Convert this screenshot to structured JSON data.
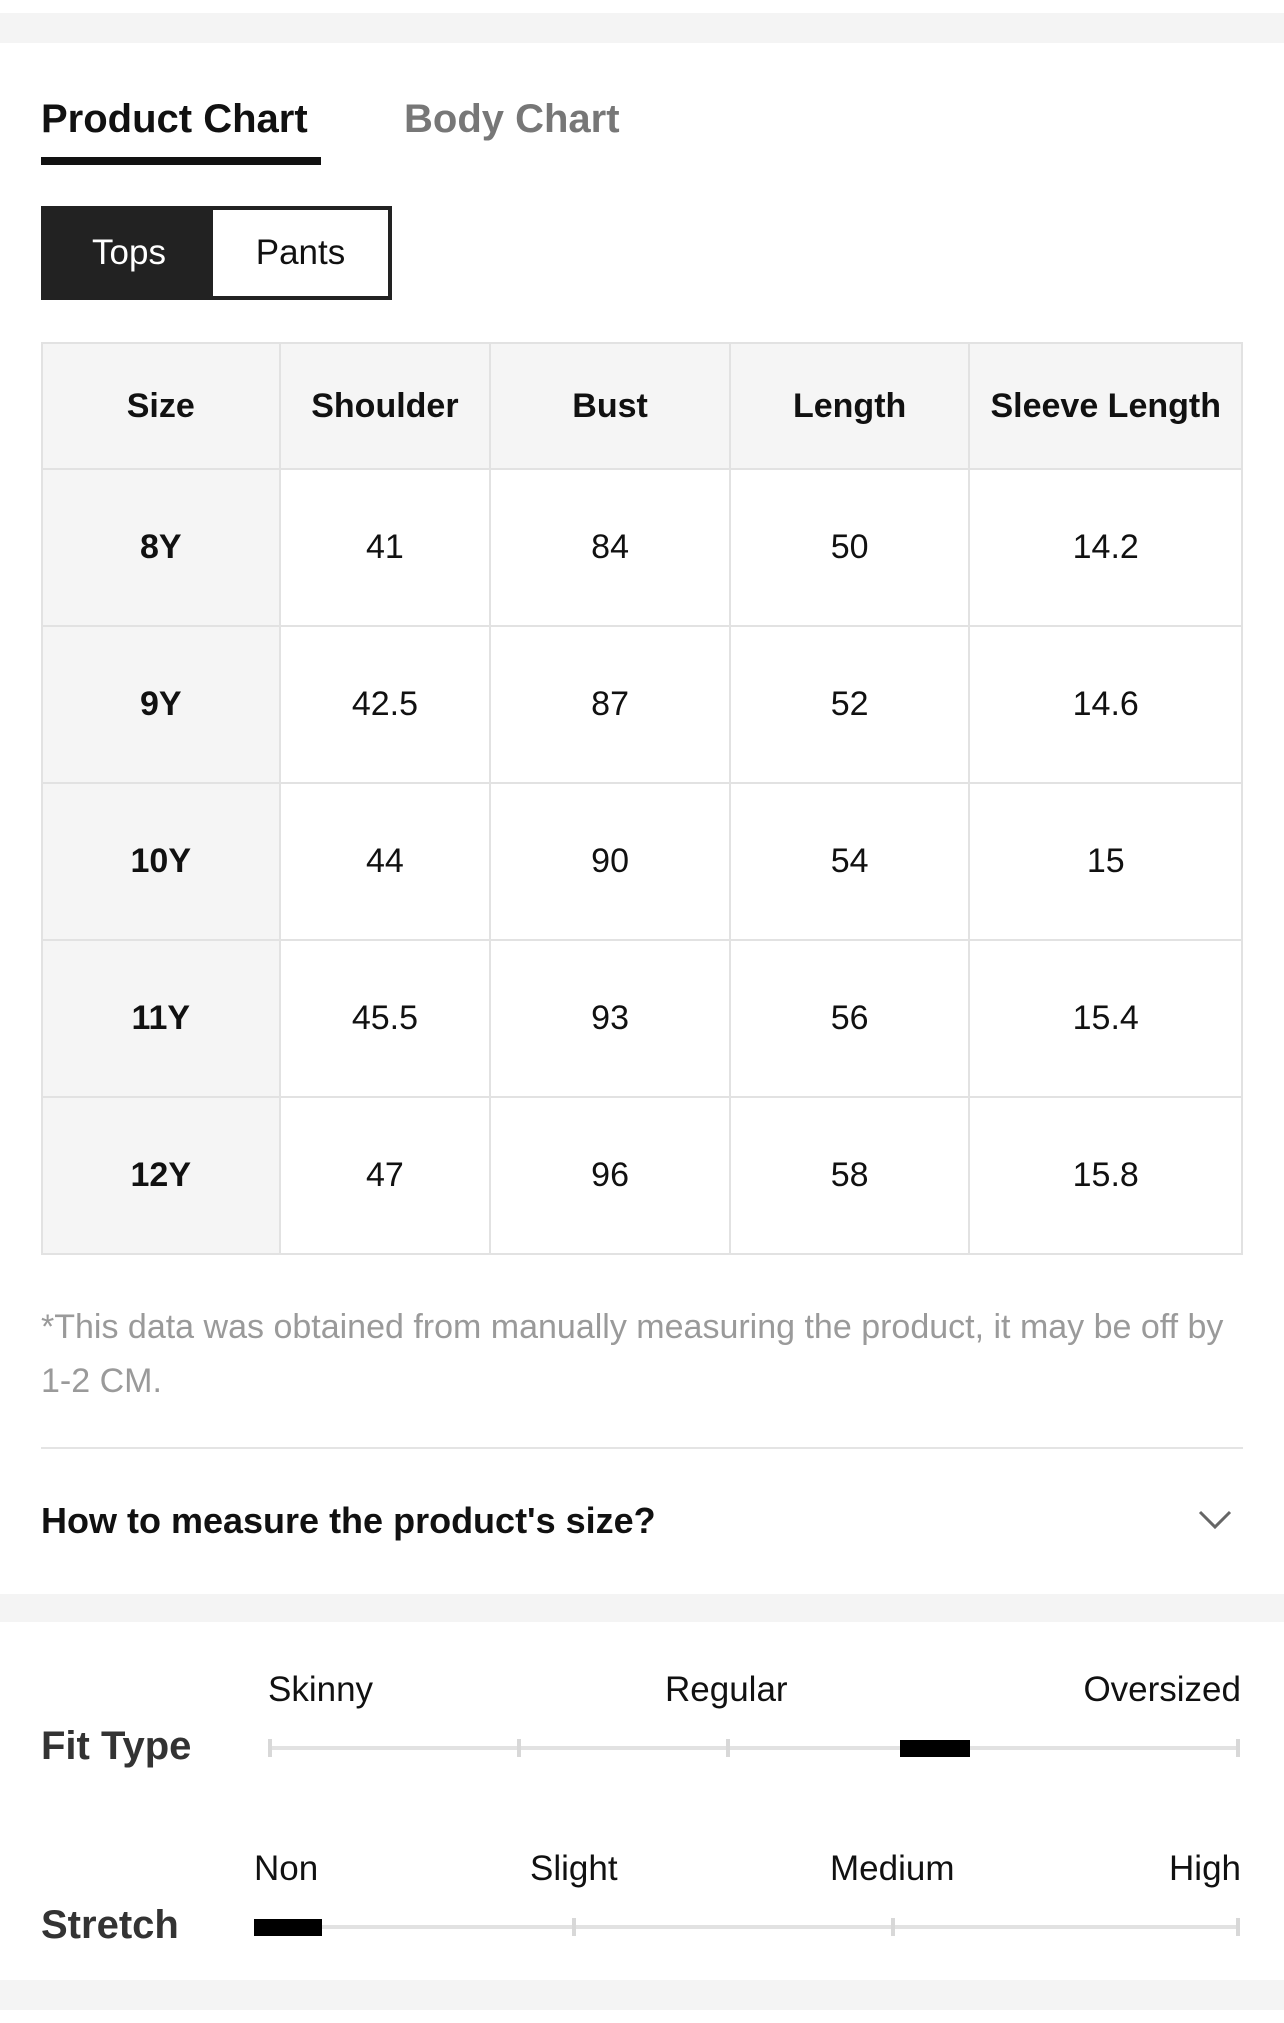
{
  "tabs": [
    "Product Chart",
    "Body Chart"
  ],
  "toggle": [
    "Tops",
    "Pants"
  ],
  "table": {
    "header": [
      "Size",
      "Shoulder",
      "Bust",
      "Length",
      "Sleeve Length"
    ],
    "rows": [
      [
        "8Y",
        "41",
        "84",
        "50",
        "14.2"
      ],
      [
        "9Y",
        "42.5",
        "87",
        "52",
        "14.6"
      ],
      [
        "10Y",
        "44",
        "90",
        "54",
        "15"
      ],
      [
        "11Y",
        "45.5",
        "93",
        "56",
        "15.4"
      ],
      [
        "12Y",
        "47",
        "96",
        "58",
        "15.8"
      ]
    ]
  },
  "note": "*This data was obtained from manually measuring the product, it may be off by 1-2 CM.",
  "measure_title": "How to measure the product's size?",
  "fit_type": {
    "label": "Fit Type",
    "scale": [
      "Skinny",
      "Regular",
      "Oversized"
    ]
  },
  "stretch": {
    "label": "Stretch",
    "scale": [
      "Non",
      "Slight",
      "Medium",
      "High"
    ]
  }
}
